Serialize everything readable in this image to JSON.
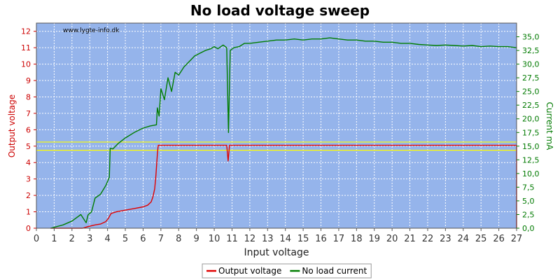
{
  "chart_data": {
    "type": "line",
    "title": "No load voltage sweep",
    "watermark": "www.lygte-info.dk",
    "xlabel": "Input voltage",
    "ylabel_left": "Output voltage",
    "ylabel_right": "Current mA",
    "xlim": [
      0,
      27
    ],
    "ylim_left": [
      0,
      12.5
    ],
    "ylim_right": [
      0,
      37.5
    ],
    "x_ticks": [
      "0",
      "1",
      "2",
      "3",
      "4",
      "5",
      "6",
      "7",
      "8",
      "9",
      "10",
      "11",
      "12",
      "13",
      "14",
      "15",
      "16",
      "17",
      "18",
      "19",
      "20",
      "21",
      "22",
      "23",
      "24",
      "25",
      "26",
      "27"
    ],
    "y_ticks_left": [
      "0",
      "1",
      "2",
      "3",
      "4",
      "5",
      "6",
      "7",
      "8",
      "9",
      "10",
      "11",
      "12"
    ],
    "y_ticks_right": [
      "0,0",
      "2,5",
      "5,0",
      "7,5",
      "10,0",
      "12,5",
      "15,0",
      "17,5",
      "20,0",
      "22,5",
      "25,0",
      "27,5",
      "30,0",
      "32,5",
      "35,0"
    ],
    "grid": true,
    "legend_position": "bottom-center",
    "reference_lines_left": [
      5.25,
      4.75
    ],
    "colors": {
      "plot_bg": "#95b4eb",
      "grid": "#ffffff",
      "output_voltage": "#e00000",
      "no_load_current": "#007d00",
      "reference_line": "#ffff00"
    },
    "series": [
      {
        "name": "Output voltage",
        "axis": "left",
        "x": [
          0.8,
          2.6,
          2.9,
          3.3,
          3.6,
          3.9,
          4.05,
          4.2,
          4.5,
          5.0,
          5.5,
          6.0,
          6.25,
          6.45,
          6.55,
          6.65,
          6.72,
          6.8,
          6.85,
          6.9,
          7.5,
          10.7,
          10.78,
          10.86,
          10.95,
          27.0,
          27.0
        ],
        "y": [
          0,
          0,
          0.1,
          0.2,
          0.25,
          0.4,
          0.6,
          0.9,
          1.0,
          1.1,
          1.2,
          1.3,
          1.4,
          1.6,
          1.9,
          2.4,
          3.2,
          4.5,
          5.05,
          5.05,
          5.05,
          5.05,
          4.1,
          5.05,
          5.05,
          5.05,
          0
        ],
        "color": "#e00000"
      },
      {
        "name": "No load current",
        "axis": "right",
        "x": [
          0.8,
          1.5,
          2.0,
          2.5,
          2.8,
          2.9,
          3.1,
          3.3,
          3.6,
          3.9,
          4.1,
          4.15,
          4.3,
          4.6,
          5.0,
          5.5,
          6.0,
          6.4,
          6.75,
          6.8,
          6.9,
          7.0,
          7.2,
          7.4,
          7.6,
          7.8,
          8.0,
          8.3,
          8.6,
          8.9,
          9.2,
          9.5,
          9.8,
          10.0,
          10.2,
          10.5,
          10.7,
          10.8,
          10.9,
          11.1,
          11.4,
          11.7,
          12.0,
          12.5,
          13.0,
          13.5,
          14.0,
          14.5,
          15.0,
          15.5,
          16.0,
          16.5,
          17.0,
          17.5,
          18.0,
          18.5,
          19.0,
          19.5,
          20.0,
          20.5,
          21.0,
          21.5,
          22.0,
          22.5,
          23.0,
          23.5,
          24.0,
          24.5,
          25.0,
          25.5,
          26.0,
          26.5,
          27.0
        ],
        "y": [
          0,
          0.6,
          1.3,
          2.5,
          1.0,
          2.4,
          3.0,
          5.5,
          6.2,
          7.8,
          9.3,
          14.6,
          14.5,
          15.5,
          16.5,
          17.5,
          18.3,
          18.7,
          18.9,
          22.0,
          20.5,
          25.5,
          23.5,
          27.5,
          25.0,
          28.5,
          28.0,
          29.5,
          30.5,
          31.5,
          32.0,
          32.5,
          32.8,
          33.2,
          32.8,
          33.5,
          33.0,
          17.5,
          32.5,
          33.0,
          33.2,
          33.8,
          33.8,
          34.0,
          34.2,
          34.4,
          34.4,
          34.6,
          34.4,
          34.6,
          34.6,
          34.8,
          34.6,
          34.4,
          34.4,
          34.2,
          34.2,
          34.0,
          34.0,
          33.8,
          33.8,
          33.6,
          33.5,
          33.4,
          33.5,
          33.4,
          33.3,
          33.4,
          33.2,
          33.3,
          33.2,
          33.2,
          33.0
        ],
        "color": "#007d00"
      }
    ]
  }
}
